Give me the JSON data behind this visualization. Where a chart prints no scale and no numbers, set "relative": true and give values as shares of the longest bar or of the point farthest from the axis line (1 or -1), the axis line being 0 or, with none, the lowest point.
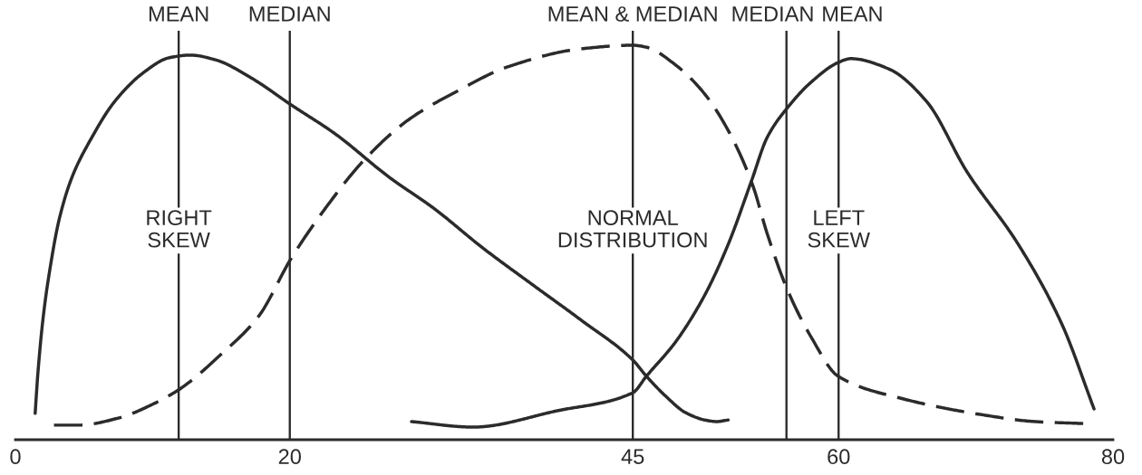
{
  "chart_data": {
    "type": "line",
    "relative": true,
    "tick_labels": "x",
    "xlim": [
      0,
      80
    ],
    "xticks": [
      0,
      20,
      45,
      60,
      80
    ],
    "series": [
      {
        "color": "#2b2b2b",
        "line_style": "solid",
        "x": [
          1.44,
          1.63,
          2.03,
          2.55,
          3.2,
          4.12,
          5.42,
          7.25,
          9.35,
          11.18,
          12.75,
          14.58,
          17.19,
          20.09,
          23.32,
          27.26,
          30.48,
          34.07,
          37.65,
          41.24,
          45.0,
          45.99,
          47.41,
          48.83,
          50.25,
          51.1,
          51.95
        ],
        "values": [
          0.067,
          0.165,
          0.312,
          0.44,
          0.56,
          0.665,
          0.757,
          0.858,
          0.931,
          0.968,
          0.975,
          0.963,
          0.917,
          0.849,
          0.775,
          0.665,
          0.587,
          0.486,
          0.394,
          0.303,
          0.202,
          0.161,
          0.11,
          0.069,
          0.05,
          0.046,
          0.05
        ]
      },
      {
        "color": "#2b2b2b",
        "line_style": "dashed",
        "x": [
          2.81,
          4.64,
          7.52,
          10.13,
          11.96,
          15.1,
          17.71,
          20.09,
          22.6,
          25.47,
          28.69,
          32.28,
          35.86,
          41.24,
          45.0,
          45.99,
          48.12,
          50.25,
          51.95,
          53.72,
          54.79,
          56.21,
          58.05,
          59.96,
          64.43,
          70.34,
          74.29,
          77.83
        ],
        "values": [
          0.037,
          0.037,
          0.055,
          0.092,
          0.128,
          0.22,
          0.312,
          0.459,
          0.587,
          0.711,
          0.812,
          0.885,
          0.945,
          0.991,
          1.0,
          0.995,
          0.95,
          0.876,
          0.784,
          0.647,
          0.523,
          0.385,
          0.257,
          0.161,
          0.106,
          0.064,
          0.046,
          0.041
        ]
      },
      {
        "color": "#2b2b2b",
        "line_style": "solid",
        "x": [
          28.87,
          33.35,
          39.44,
          45.0,
          45.99,
          48.12,
          50.25,
          51.95,
          53.65,
          54.79,
          56.21,
          58.05,
          59.96,
          60.89,
          63.65,
          66.4,
          69.36,
          73.1,
          76.26,
          78.62
        ],
        "values": [
          0.046,
          0.032,
          0.073,
          0.119,
          0.161,
          0.248,
          0.367,
          0.495,
          0.656,
          0.766,
          0.839,
          0.908,
          0.956,
          0.966,
          0.94,
          0.858,
          0.679,
          0.495,
          0.294,
          0.078
        ]
      }
    ],
    "ref_lines": [
      {
        "axis": "x",
        "value": 11.9,
        "label": "MEAN",
        "color": "#2b2b2b"
      },
      {
        "axis": "x",
        "value": 20,
        "label": "MEDIAN",
        "color": "#2b2b2b"
      },
      {
        "axis": "x",
        "value": 45,
        "label": "MEAN & MEDIAN",
        "color": "#2b2b2b"
      },
      {
        "axis": "x",
        "value": 56.2,
        "label": "MEDIAN",
        "color": "#2b2b2b"
      },
      {
        "axis": "x",
        "value": 60,
        "label": "MEAN",
        "color": "#2b2b2b"
      }
    ],
    "annotations": [
      {
        "text": "RIGHT\nSKEW",
        "x": 11.9,
        "y": 0.53
      },
      {
        "text": "NORMAL\nDISTRIBUTION",
        "x": 45,
        "y": 0.53
      },
      {
        "text": "LEFT\nSKEW",
        "x": 60,
        "y": 0.53
      }
    ]
  }
}
